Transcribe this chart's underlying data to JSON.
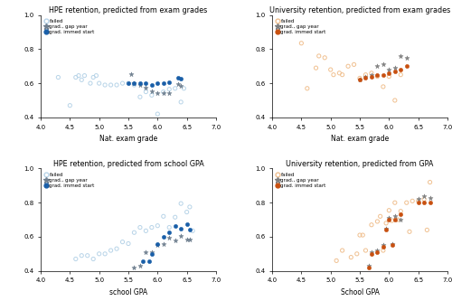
{
  "panels": [
    {
      "title": "HPE retention, predicted from exam grades",
      "xlabel": "Nat. exam grade",
      "xlim": [
        4.0,
        7.0
      ],
      "ylim": [
        0.4,
        1.0
      ],
      "yticks": [
        0.4,
        0.6,
        0.8,
        1.0
      ],
      "xticks": [
        4.0,
        4.5,
        5.0,
        5.5,
        6.0,
        6.5,
        7.0
      ],
      "color_failed": "#b8d4e8",
      "color_gap": "#708090",
      "color_immed": "#1a5fa8",
      "groups": {
        "failed": {
          "x": [
            4.3,
            4.5,
            4.6,
            4.65,
            4.7,
            4.75,
            4.85,
            4.9,
            4.95,
            5.0,
            5.1,
            5.2,
            5.3,
            5.4,
            5.5,
            5.6,
            5.7,
            5.8,
            5.9,
            6.0,
            6.1,
            6.2,
            6.3,
            6.4,
            6.45
          ],
          "y": [
            0.635,
            0.47,
            0.635,
            0.645,
            0.62,
            0.645,
            0.6,
            0.635,
            0.645,
            0.6,
            0.59,
            0.59,
            0.59,
            0.6,
            0.6,
            0.59,
            0.52,
            0.55,
            0.53,
            0.42,
            0.55,
            0.565,
            0.57,
            0.49,
            0.57
          ]
        },
        "gap": {
          "x": [
            5.55,
            5.6,
            5.7,
            5.8,
            5.9,
            6.0,
            6.1,
            6.2,
            6.35,
            6.4
          ],
          "y": [
            0.655,
            0.6,
            0.59,
            0.575,
            0.555,
            0.54,
            0.545,
            0.54,
            0.595,
            0.585
          ]
        },
        "immed": {
          "x": [
            5.5,
            5.6,
            5.7,
            5.8,
            5.9,
            6.0,
            6.1,
            6.2,
            6.35,
            6.4
          ],
          "y": [
            0.6,
            0.6,
            0.6,
            0.6,
            0.59,
            0.6,
            0.6,
            0.605,
            0.63,
            0.625
          ]
        }
      }
    },
    {
      "title": "University retention, predicted from exam grades",
      "xlabel": "Nat. exam grade",
      "xlim": [
        4.0,
        7.0
      ],
      "ylim": [
        0.4,
        1.0
      ],
      "yticks": [
        0.4,
        0.6,
        0.8,
        1.0
      ],
      "xticks": [
        4.0,
        4.5,
        5.0,
        5.5,
        6.0,
        6.5,
        7.0
      ],
      "color_failed": "#f0c090",
      "color_gap": "#808080",
      "color_immed": "#c85010",
      "groups": {
        "failed": {
          "x": [
            4.5,
            4.6,
            4.75,
            4.8,
            4.9,
            5.0,
            5.05,
            5.15,
            5.2,
            5.3,
            5.4,
            5.5,
            5.6,
            5.7,
            5.8,
            5.9,
            6.0,
            6.1,
            6.2
          ],
          "y": [
            0.835,
            0.57,
            0.69,
            0.76,
            0.75,
            0.68,
            0.65,
            0.66,
            0.65,
            0.7,
            0.71,
            0.63,
            0.65,
            0.66,
            0.64,
            0.58,
            0.64,
            0.5,
            0.65
          ]
        },
        "gap": {
          "x": [
            5.5,
            5.6,
            5.7,
            5.8,
            5.9,
            6.0,
            6.1,
            6.2,
            6.3
          ],
          "y": [
            0.62,
            0.64,
            0.65,
            0.7,
            0.71,
            0.68,
            0.69,
            0.76,
            0.75
          ]
        },
        "immed": {
          "x": [
            5.5,
            5.6,
            5.7,
            5.8,
            5.9,
            6.0,
            6.1,
            6.2,
            6.3
          ],
          "y": [
            0.62,
            0.63,
            0.64,
            0.648,
            0.65,
            0.66,
            0.67,
            0.68,
            0.7
          ]
        }
      }
    },
    {
      "title": "HPE retention, predicted from school GPA",
      "xlabel": "school GPA",
      "xlim": [
        4.0,
        7.0
      ],
      "ylim": [
        0.4,
        1.0
      ],
      "yticks": [
        0.4,
        0.6,
        0.8,
        1.0
      ],
      "xticks": [
        4.0,
        4.5,
        5.0,
        5.5,
        6.0,
        6.5,
        7.0
      ],
      "color_failed": "#b8d4e8",
      "color_gap": "#708090",
      "color_immed": "#1a5fa8",
      "groups": {
        "failed": {
          "x": [
            4.6,
            4.7,
            4.8,
            4.9,
            5.0,
            5.1,
            5.2,
            5.3,
            5.4,
            5.5,
            5.6,
            5.7,
            5.8,
            5.9,
            6.0,
            6.1,
            6.2,
            6.3,
            6.4,
            6.5,
            6.55,
            6.6
          ],
          "y": [
            0.47,
            0.49,
            0.49,
            0.47,
            0.5,
            0.5,
            0.52,
            0.53,
            0.57,
            0.56,
            0.625,
            0.655,
            0.635,
            0.655,
            0.665,
            0.72,
            0.655,
            0.715,
            0.795,
            0.745,
            0.775,
            0.635
          ]
        },
        "gap": {
          "x": [
            5.6,
            5.7,
            5.8,
            5.9,
            6.0,
            6.1,
            6.2,
            6.3,
            6.4,
            6.5,
            6.55
          ],
          "y": [
            0.42,
            0.43,
            0.51,
            0.51,
            0.55,
            0.56,
            0.595,
            0.58,
            0.605,
            0.585,
            0.585
          ]
        },
        "immed": {
          "x": [
            5.75,
            5.85,
            5.9,
            6.0,
            6.1,
            6.2,
            6.3,
            6.4,
            6.5,
            6.55
          ],
          "y": [
            0.455,
            0.455,
            0.5,
            0.56,
            0.6,
            0.625,
            0.665,
            0.65,
            0.675,
            0.64
          ]
        }
      }
    },
    {
      "title": "University retention, predicted from GPA",
      "xlabel": "School GPA",
      "xlim": [
        4.0,
        7.0
      ],
      "ylim": [
        0.4,
        1.0
      ],
      "yticks": [
        0.4,
        0.6,
        0.8,
        1.0
      ],
      "xticks": [
        4.0,
        4.5,
        5.0,
        5.5,
        6.0,
        6.5,
        7.0
      ],
      "color_failed": "#f0c090",
      "color_gap": "#808080",
      "color_immed": "#c85010",
      "groups": {
        "failed": {
          "x": [
            5.1,
            5.2,
            5.35,
            5.45,
            5.5,
            5.55,
            5.6,
            5.7,
            5.8,
            5.85,
            5.9,
            5.95,
            6.0,
            6.05,
            6.1,
            6.15,
            6.2,
            6.3,
            6.35,
            6.4,
            6.5,
            6.6,
            6.65,
            6.7
          ],
          "y": [
            0.46,
            0.52,
            0.48,
            0.5,
            0.61,
            0.61,
            0.52,
            0.67,
            0.69,
            0.72,
            0.52,
            0.68,
            0.755,
            0.695,
            0.8,
            0.7,
            0.75,
            0.8,
            0.63,
            0.81,
            0.81,
            0.82,
            0.64,
            0.92
          ]
        },
        "gap": {
          "x": [
            5.65,
            5.7,
            5.8,
            5.9,
            5.95,
            6.0,
            6.05,
            6.1,
            6.2,
            6.5,
            6.6,
            6.7
          ],
          "y": [
            0.43,
            0.51,
            0.52,
            0.55,
            0.65,
            0.71,
            0.56,
            0.72,
            0.7,
            0.82,
            0.84,
            0.83
          ]
        },
        "immed": {
          "x": [
            5.65,
            5.7,
            5.8,
            5.9,
            5.95,
            6.0,
            6.05,
            6.1,
            6.2,
            6.5,
            6.6,
            6.7
          ],
          "y": [
            0.42,
            0.5,
            0.51,
            0.54,
            0.64,
            0.7,
            0.55,
            0.7,
            0.73,
            0.8,
            0.8,
            0.8
          ]
        }
      }
    }
  ]
}
